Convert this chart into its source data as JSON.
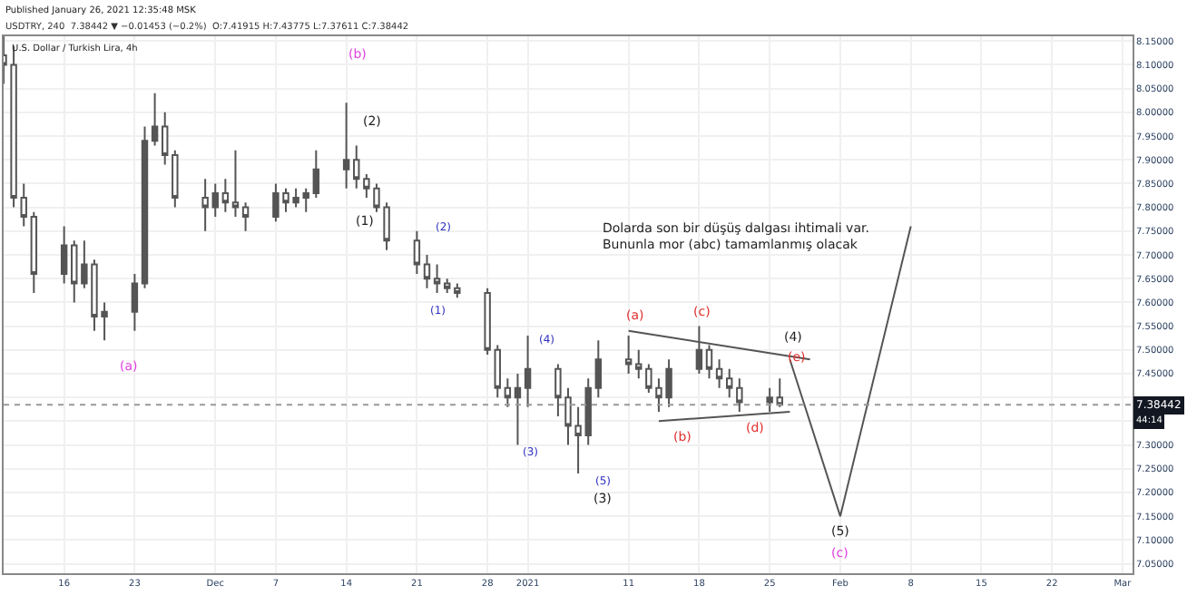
{
  "chart_data": {
    "type": "candlestick",
    "title": "U.S. Dollar / Turkish Lira, 4h",
    "subtitle": "USDTRY, 240  7.38442 ▼ −0.01453 (−0.2%)  O:7.41915 H:7.43775 L:7.37611 C:7.38442",
    "x": [
      "2020-11-10",
      "2020-11-11",
      "2020-11-12",
      "2020-11-13",
      "2020-11-16",
      "2020-11-17",
      "2020-11-18",
      "2020-11-19",
      "2020-11-20",
      "2020-11-23",
      "2020-11-24",
      "2020-11-25",
      "2020-11-26",
      "2020-11-27",
      "2020-11-30",
      "2020-12-01",
      "2020-12-02",
      "2020-12-03",
      "2020-12-04",
      "2020-12-07",
      "2020-12-08",
      "2020-12-09",
      "2020-12-10",
      "2020-12-11",
      "2020-12-14",
      "2020-12-15",
      "2020-12-16",
      "2020-12-17",
      "2020-12-18",
      "2020-12-21",
      "2020-12-22",
      "2020-12-23",
      "2020-12-24",
      "2020-12-25",
      "2020-12-28",
      "2020-12-29",
      "2020-12-30",
      "2020-12-31",
      "2021-01-01",
      "2021-01-04",
      "2021-01-05",
      "2021-01-06",
      "2021-01-07",
      "2021-01-08",
      "2021-01-11",
      "2021-01-12",
      "2021-01-13",
      "2021-01-14",
      "2021-01-15",
      "2021-01-18",
      "2021-01-19",
      "2021-01-20",
      "2021-01-21",
      "2021-01-22",
      "2021-01-25",
      "2021-01-26"
    ],
    "ohlc": [
      [
        8.12,
        8.16,
        8.06,
        8.1
      ],
      [
        8.1,
        8.14,
        7.8,
        7.82
      ],
      [
        7.82,
        7.85,
        7.76,
        7.78
      ],
      [
        7.78,
        7.79,
        7.62,
        7.66
      ],
      [
        7.66,
        7.76,
        7.64,
        7.72
      ],
      [
        7.72,
        7.73,
        7.6,
        7.64
      ],
      [
        7.64,
        7.73,
        7.63,
        7.68
      ],
      [
        7.68,
        7.69,
        7.54,
        7.57
      ],
      [
        7.57,
        7.6,
        7.52,
        7.58
      ],
      [
        7.58,
        7.66,
        7.54,
        7.64
      ],
      [
        7.64,
        7.97,
        7.63,
        7.94
      ],
      [
        7.94,
        8.04,
        7.93,
        7.97
      ],
      [
        7.97,
        8.0,
        7.89,
        7.91
      ],
      [
        7.91,
        7.92,
        7.8,
        7.82
      ],
      [
        7.82,
        7.86,
        7.75,
        7.8
      ],
      [
        7.8,
        7.85,
        7.78,
        7.83
      ],
      [
        7.83,
        7.86,
        7.79,
        7.81
      ],
      [
        7.81,
        7.92,
        7.78,
        7.8
      ],
      [
        7.8,
        7.81,
        7.75,
        7.78
      ],
      [
        7.78,
        7.85,
        7.77,
        7.83
      ],
      [
        7.83,
        7.84,
        7.79,
        7.81
      ],
      [
        7.81,
        7.84,
        7.8,
        7.82
      ],
      [
        7.82,
        7.84,
        7.79,
        7.83
      ],
      [
        7.83,
        7.92,
        7.82,
        7.88
      ],
      [
        7.88,
        8.02,
        7.84,
        7.9
      ],
      [
        7.9,
        7.93,
        7.84,
        7.86
      ],
      [
        7.86,
        7.87,
        7.82,
        7.84
      ],
      [
        7.84,
        7.85,
        7.79,
        7.8
      ],
      [
        7.8,
        7.81,
        7.71,
        7.73
      ],
      [
        7.73,
        7.75,
        7.66,
        7.68
      ],
      [
        7.68,
        7.7,
        7.63,
        7.65
      ],
      [
        7.65,
        7.68,
        7.62,
        7.64
      ],
      [
        7.64,
        7.65,
        7.62,
        7.63
      ],
      [
        7.63,
        7.64,
        7.61,
        7.62
      ],
      [
        7.62,
        7.63,
        7.49,
        7.5
      ],
      [
        7.5,
        7.51,
        7.4,
        7.42
      ],
      [
        7.42,
        7.44,
        7.38,
        7.4
      ],
      [
        7.4,
        7.45,
        7.3,
        7.42
      ],
      [
        7.42,
        7.53,
        7.38,
        7.46
      ],
      [
        7.46,
        7.47,
        7.36,
        7.4
      ],
      [
        7.4,
        7.42,
        7.3,
        7.34
      ],
      [
        7.34,
        7.38,
        7.24,
        7.32
      ],
      [
        7.32,
        7.44,
        7.3,
        7.42
      ],
      [
        7.42,
        7.52,
        7.4,
        7.48
      ],
      [
        7.48,
        7.53,
        7.45,
        7.47
      ],
      [
        7.47,
        7.5,
        7.44,
        7.46
      ],
      [
        7.46,
        7.47,
        7.41,
        7.42
      ],
      [
        7.42,
        7.44,
        7.37,
        7.4
      ],
      [
        7.4,
        7.48,
        7.38,
        7.46
      ],
      [
        7.46,
        7.55,
        7.45,
        7.5
      ],
      [
        7.5,
        7.51,
        7.44,
        7.46
      ],
      [
        7.46,
        7.48,
        7.42,
        7.44
      ],
      [
        7.44,
        7.46,
        7.4,
        7.42
      ],
      [
        7.42,
        7.44,
        7.37,
        7.39
      ],
      [
        7.39,
        7.42,
        7.37,
        7.4
      ],
      [
        7.4,
        7.44,
        7.38,
        7.38442
      ]
    ],
    "color": "#555555",
    "series": [
      {
        "type": "line",
        "color": "#555555",
        "x": [
          "2021-01-11",
          "2021-01-29"
        ],
        "values": [
          7.54,
          7.48
        ]
      },
      {
        "type": "line",
        "color": "#555555",
        "x": [
          "2021-01-14",
          "2021-01-27"
        ],
        "values": [
          7.35,
          7.37
        ]
      },
      {
        "type": "line",
        "color": "#555555",
        "x": [
          "2021-01-27",
          "2021-02-01",
          "2021-02-08"
        ],
        "values": [
          7.48,
          7.15,
          7.76
        ]
      }
    ],
    "xlim": [
      "2020-11-10",
      "2021-03-02"
    ],
    "xticks": [
      {
        "value": "2020-11-16",
        "label": "16"
      },
      {
        "value": "2020-11-23",
        "label": "23"
      },
      {
        "value": "2020-12-01",
        "label": "Dec"
      },
      {
        "value": "2020-12-07",
        "label": "7"
      },
      {
        "value": "2020-12-14",
        "label": "14"
      },
      {
        "value": "2020-12-21",
        "label": "21"
      },
      {
        "value": "2020-12-28",
        "label": "28"
      },
      {
        "value": "2021-01-01",
        "label": "2021"
      },
      {
        "value": "2021-01-11",
        "label": "11"
      },
      {
        "value": "2021-01-18",
        "label": "18"
      },
      {
        "value": "2021-01-25",
        "label": "25"
      },
      {
        "value": "2021-02-01",
        "label": "Feb"
      },
      {
        "value": "2021-02-08",
        "label": "8"
      },
      {
        "value": "2021-02-15",
        "label": "15"
      },
      {
        "value": "2021-02-22",
        "label": "22"
      },
      {
        "value": "2021-03-01",
        "label": "Mar"
      }
    ],
    "ylim": [
      7.03,
      8.16
    ],
    "yticks": [
      {
        "value": 7.05,
        "label": "7.05000"
      },
      {
        "value": 7.1,
        "label": "7.10000"
      },
      {
        "value": 7.15,
        "label": "7.15000"
      },
      {
        "value": 7.2,
        "label": "7.20000"
      },
      {
        "value": 7.25,
        "label": "7.25000"
      },
      {
        "value": 7.3,
        "label": "7.30000"
      },
      {
        "value": 7.35,
        "label": null
      },
      {
        "value": 7.4,
        "label": null
      },
      {
        "value": 7.45,
        "label": "7.45000"
      },
      {
        "value": 7.5,
        "label": "7.50000"
      },
      {
        "value": 7.55,
        "label": "7.55000"
      },
      {
        "value": 7.6,
        "label": "7.60000"
      },
      {
        "value": 7.65,
        "label": "7.65000"
      },
      {
        "value": 7.7,
        "label": "7.70000"
      },
      {
        "value": 7.75,
        "label": "7.75000"
      },
      {
        "value": 7.8,
        "label": "7.80000"
      },
      {
        "value": 7.85,
        "label": "7.85000"
      },
      {
        "value": 7.9,
        "label": "7.90000"
      },
      {
        "value": 7.95,
        "label": "7.95000"
      },
      {
        "value": 8.0,
        "label": "8.00000"
      },
      {
        "value": 8.05,
        "label": "8.05000"
      },
      {
        "value": 8.1,
        "label": "8.10000"
      },
      {
        "value": 8.15,
        "label": "8.15000"
      }
    ],
    "grid": true,
    "ref_lines": [
      {
        "axis": "y",
        "value": 7.38442,
        "label": "7.38442",
        "color": "#999999",
        "line_style": "dotted"
      }
    ],
    "annotations": [
      "Published January 26, 2021 12:35:48 MSK",
      "44:14",
      "Dolarda son bir düşüş dalgası ihtimali var.\nBununla mor (abc) tamamlanmış olacak",
      "(b)",
      "(2)",
      "(1)",
      "(a)",
      "(2)",
      "(1)",
      "(4)",
      "(3)",
      "(5)",
      "(3)",
      "(a)",
      "(c)",
      "(b)",
      "(d)",
      "(4)",
      "(e)",
      "(5)",
      "(c)"
    ]
  }
}
